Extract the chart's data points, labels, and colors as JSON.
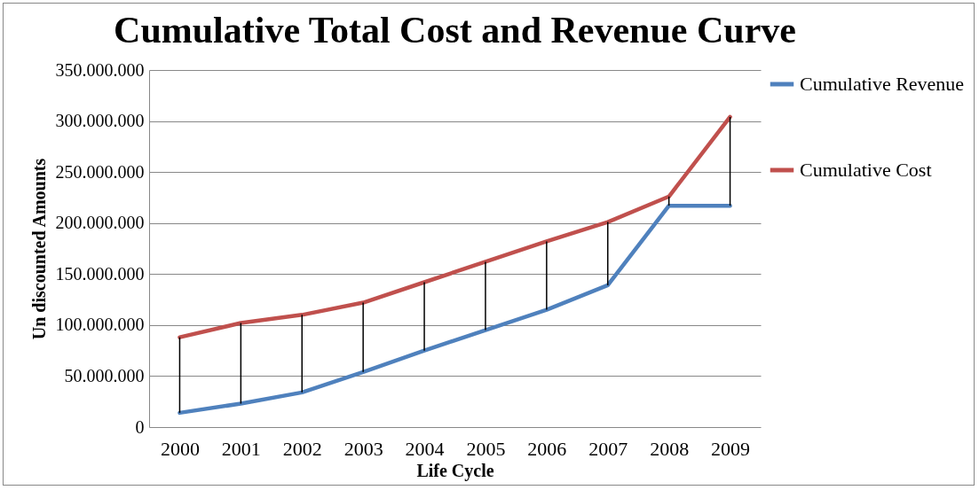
{
  "chart_data": {
    "type": "line",
    "title": "Cumulative Total Cost and Revenue Curve",
    "xlabel": "Life Cycle",
    "ylabel": "Un discounted Amounts",
    "categories": [
      "2000",
      "2001",
      "2002",
      "2003",
      "2004",
      "2005",
      "2006",
      "2007",
      "2008",
      "2009"
    ],
    "series": [
      {
        "name": "Cumulative Revenue",
        "color": "#4f81bd",
        "values": [
          14000000,
          23000000,
          34000000,
          54000000,
          75000000,
          95000000,
          115000000,
          139000000,
          217000000,
          217000000
        ],
        "errors": [
          [
            14000000,
            88000000
          ],
          [
            23000000,
            102000000
          ],
          [
            34000000,
            110000000
          ],
          [
            54000000,
            122000000
          ],
          [
            75000000,
            142000000
          ],
          [
            95000000,
            162000000
          ],
          [
            115000000,
            182000000
          ],
          [
            139000000,
            201000000
          ],
          [
            217000000,
            226000000
          ],
          [
            217000000,
            304000000
          ]
        ]
      },
      {
        "name": "Cumulative Cost",
        "color": "#c0504d",
        "values": [
          88000000,
          102000000,
          110000000,
          122000000,
          142000000,
          162000000,
          182000000,
          201000000,
          226000000,
          304000000
        ]
      }
    ],
    "ylim": [
      0,
      350000000
    ],
    "yticks": [
      0,
      {
        "value": 50000000,
        "label": "50.000.000"
      },
      {
        "value": 100000000,
        "label": "100.000.000"
      },
      {
        "value": 150000000,
        "label": "150.000.000"
      },
      {
        "value": 200000000,
        "label": "200.000.000"
      },
      {
        "value": 250000000,
        "label": "250.000.000"
      },
      {
        "value": 300000000,
        "label": "300.000.000"
      },
      {
        "value": 350000000,
        "label": "350.000.000"
      }
    ],
    "grid": "y",
    "legend": "right",
    "marker": "none",
    "line_style": "solid"
  }
}
